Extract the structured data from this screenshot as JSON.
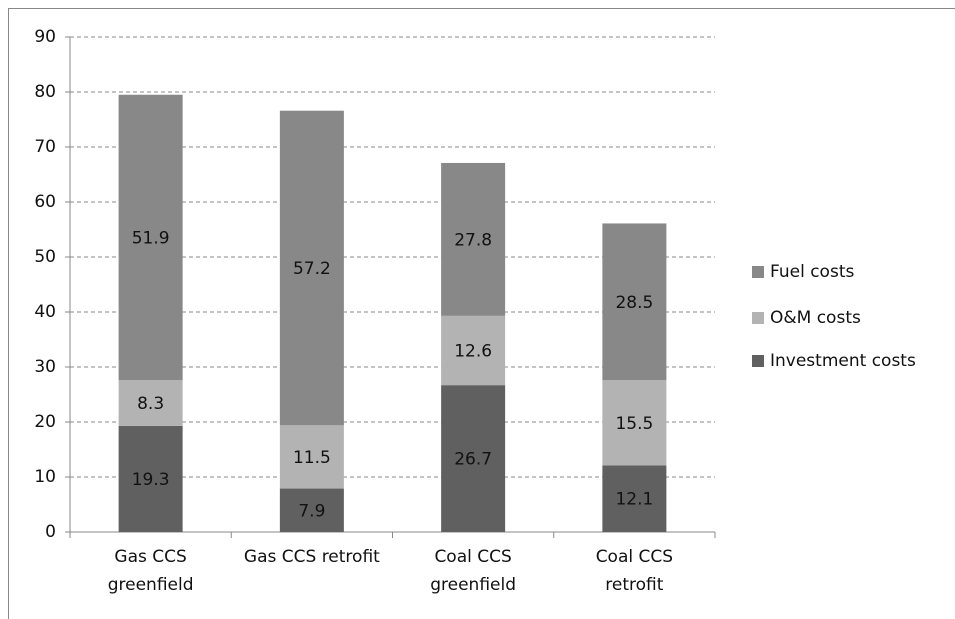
{
  "chart_data": {
    "type": "stacked_bar",
    "categories": [
      "Gas CCS\ngreenfield",
      "Gas CCS retrofit",
      "Coal CCS\ngreenfield",
      "Coal CCS\nretrofit"
    ],
    "series": [
      {
        "name": "Investment costs",
        "color": "#606060",
        "values": [
          19.3,
          7.9,
          26.7,
          12.1
        ]
      },
      {
        "name": "O&M costs",
        "color": "#b3b3b3",
        "values": [
          8.3,
          11.5,
          12.6,
          15.5
        ]
      },
      {
        "name": "Fuel costs",
        "color": "#888888",
        "values": [
          51.9,
          57.2,
          27.8,
          28.5
        ]
      }
    ],
    "ylim": [
      0,
      90
    ],
    "yticks": [
      0,
      10,
      20,
      30,
      40,
      50,
      60,
      70,
      80,
      90
    ],
    "grid": true,
    "legend": "right"
  }
}
